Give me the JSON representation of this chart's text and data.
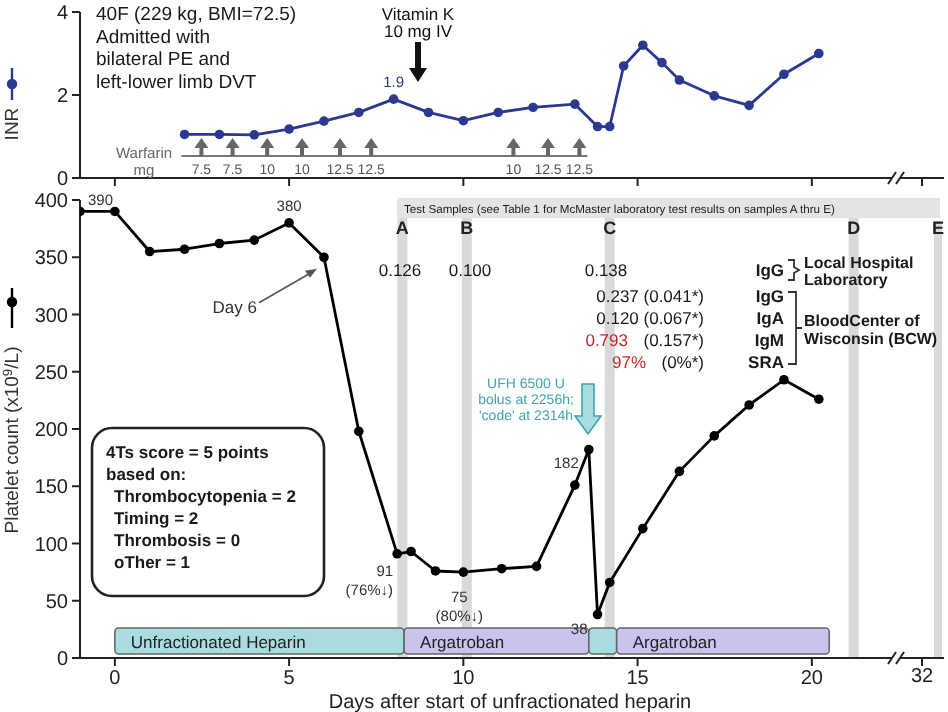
{
  "chart_data": [
    {
      "type": "line",
      "ylabel": "INR",
      "marker": "circle",
      "tick_labels": "y",
      "x": [
        2,
        3,
        4,
        5,
        6,
        7,
        8,
        9,
        10,
        11,
        12,
        13.2,
        13.85,
        14.2,
        14.6,
        15.15,
        15.7,
        16.2,
        17.2,
        18.2,
        19.2,
        20.2
      ],
      "series": [
        {
          "color": "#2b3990",
          "values": [
            1.05,
            1.05,
            1.04,
            1.18,
            1.37,
            1.58,
            1.9,
            1.58,
            1.38,
            1.58,
            1.7,
            1.78,
            1.24,
            1.24,
            2.7,
            3.2,
            2.78,
            2.36,
            1.98,
            1.75,
            2.5,
            3.0
          ],
          "value_labels": [
            null,
            null,
            null,
            null,
            null,
            null,
            "1.9",
            null,
            null,
            null,
            null,
            null,
            null,
            null,
            null,
            null,
            null,
            null,
            null,
            null,
            null,
            null
          ]
        }
      ],
      "xlim": [
        -1,
        22.3
      ],
      "xticks": [
        0,
        5,
        10,
        15,
        20
      ],
      "ylim": [
        0,
        4
      ],
      "yticks": [
        0,
        2,
        4
      ],
      "annotations": [
        "40F (229 kg, BMI=72.5)\nAdmitted with\nbilateral PE and\nleft-lower limb DVT",
        "Vitamin K\n10 mg IV",
        "Warfarin\nmg",
        "7.5",
        "7.5",
        "10",
        "10",
        "12.5",
        "12.5",
        "10",
        "12.5",
        "12.5"
      ]
    },
    {
      "type": "line",
      "xlabel": "Days after start of unfractionated heparin",
      "ylabel": "Platelet count (x10$^{9}$/L)",
      "marker": "circle",
      "x": [
        -1,
        0,
        1,
        2,
        3,
        4,
        5,
        6,
        7,
        8.1,
        8.5,
        9.2,
        10,
        11.1,
        12.1,
        13.2,
        13.6,
        13.85,
        14.2,
        15.15,
        16.2,
        17.2,
        18.2,
        19.2,
        20.2
      ],
      "series": [
        {
          "color": "#000000",
          "values": [
            390,
            390,
            355,
            357,
            362,
            365,
            380,
            350,
            198,
            91,
            93,
            76,
            75,
            78,
            80,
            151,
            182,
            38,
            66,
            113,
            163,
            194,
            221,
            243,
            226
          ],
          "value_labels": [
            "390",
            null,
            null,
            null,
            null,
            null,
            "380",
            null,
            null,
            "91\n(76%↓)",
            null,
            null,
            "75\n(80%↓)",
            null,
            null,
            null,
            "182",
            "38",
            null,
            null,
            null,
            null,
            null,
            null,
            null
          ]
        }
      ],
      "xlim": [
        -1,
        22.3
      ],
      "xticks": [
        0,
        5,
        10,
        15,
        20
      ],
      "ylim": [
        0,
        400
      ],
      "yticks": [
        0,
        50,
        100,
        150,
        200,
        250,
        300,
        350,
        400
      ],
      "ref_lines": [
        {
          "axis": "x",
          "value": 8.25,
          "label": "A",
          "color": "#d9d9d9"
        },
        {
          "axis": "x",
          "value": 10.1,
          "label": "B",
          "color": "#d9d9d9"
        },
        {
          "axis": "x",
          "value": 14.2,
          "label": "C",
          "color": "#d9d9d9"
        },
        {
          "axis": "x",
          "value": 21.2,
          "label": "D",
          "color": "#d9d9d9"
        }
      ],
      "bands": [
        {
          "axis": "x",
          "from": 0,
          "to": 8.3,
          "label": "Unfractionated Heparin",
          "color": "#a9dcdf"
        },
        {
          "axis": "x",
          "from": 8.3,
          "to": 13.6,
          "label": "Argatroban",
          "color": "#c8c4ee"
        },
        {
          "axis": "x",
          "from": 13.6,
          "to": 14.4,
          "color": "#a9dcdf"
        },
        {
          "axis": "x",
          "from": 14.4,
          "to": 20.5,
          "label": "Argatroban",
          "color": "#c8c4ee"
        }
      ],
      "annotations": [
        "Test Samples (see Table 1 for McMaster laboratory test results on samples A thru E)",
        "0.126",
        "0.100",
        "0.138",
        "IgG",
        "Local Hospital\nLaboratory",
        "0.237 (0.041*)",
        "0.120 (0.067*)",
        "0.793",
        "(0.157*)",
        "97%",
        "(0%*)",
        "IgG",
        "IgA",
        "IgM",
        "SRA",
        "BloodCenter of\nWisconsin (BCW)",
        "4Ts score = 5 points\nbased on:\nThrombocytopenia = 2\nTiming = 2\nThrombosis = 0\noTher = 1",
        {
          "text": "Day 6",
          "x": 5.8,
          "y": 340
        },
        "UFH 6500 U\nbolus at 2256h;\n'code' at 2314h"
      ]
    },
    {
      "type": "other",
      "annotations": [
        "32",
        "E"
      ]
    }
  ]
}
